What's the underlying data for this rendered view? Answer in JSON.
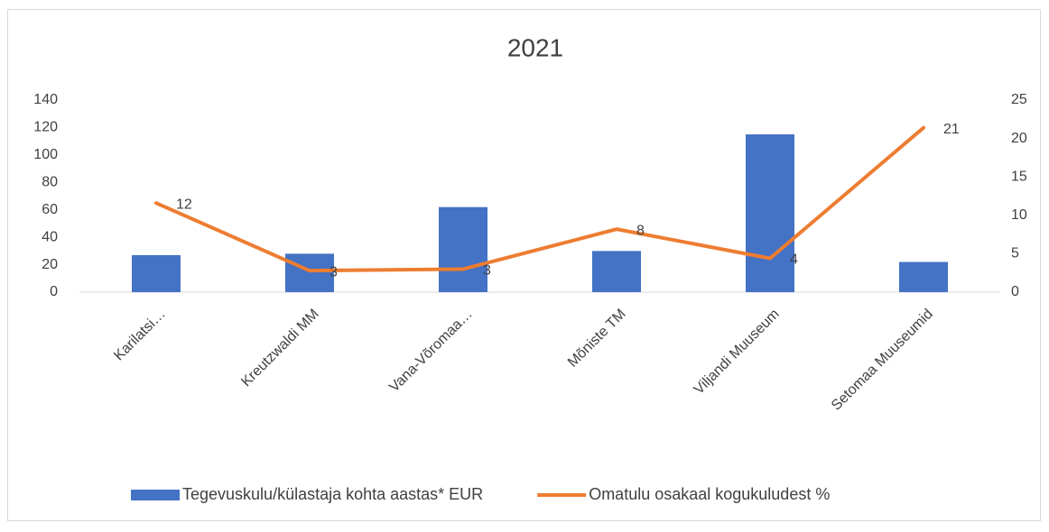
{
  "chart_data": {
    "type": "bar-line",
    "title": "2021",
    "categories": [
      "Karilatsi…",
      "Kreutzwaldi MM",
      "Vana-Võromaa…",
      "Mõniste TM",
      "Viljandi Muuseum",
      "Setomaa Muuseumid"
    ],
    "series": [
      {
        "name": "Tegevuskulu/külastaja kohta aastas* EUR",
        "type": "bar",
        "color": "#4472c4",
        "values": [
          27,
          28,
          62,
          30,
          115,
          22
        ]
      },
      {
        "name": "Omatulu osakaal kogukuludest %",
        "type": "line",
        "axis": "y2",
        "color": "#ed7d31",
        "values": [
          11.6,
          2.8,
          3.0,
          8.2,
          4.4,
          21.4
        ],
        "value_labels": [
          "12",
          "3",
          "3",
          "8",
          "4",
          "21"
        ]
      }
    ],
    "ylim": [
      0,
      140
    ],
    "yticks": [
      0,
      20,
      40,
      60,
      80,
      100,
      120,
      140
    ],
    "y2lim": [
      0,
      25
    ],
    "y2ticks": [
      0,
      5,
      10,
      15,
      20,
      25
    ],
    "grid": false,
    "legend": "bottom"
  }
}
